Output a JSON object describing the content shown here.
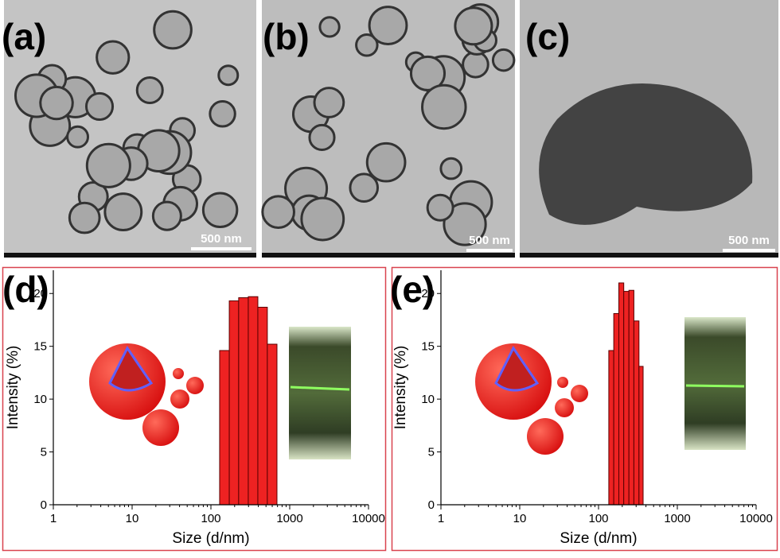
{
  "images": [
    {
      "label": "(a)",
      "scale_bar": "500 nm"
    },
    {
      "label": "(b)",
      "scale_bar": "500 nm"
    },
    {
      "label": "(c)",
      "scale_bar": "500 nm"
    }
  ],
  "chart_data": [
    {
      "type": "histogram",
      "label": "(d)",
      "xlabel": "Size (d/nm)",
      "ylabel": "Intensity (%)",
      "bins": [
        129,
        171,
        225,
        298,
        394,
        520,
        689
      ],
      "values": [
        14.6,
        19.3,
        19.6,
        19.7,
        18.7,
        15.2
      ],
      "color": "#ee2222",
      "edge_color": "#5a0000",
      "log_x": true,
      "xlim": [
        1,
        10000
      ],
      "xticks": [
        1,
        10,
        100,
        1000,
        10000
      ],
      "ylim": [
        0,
        22.2
      ],
      "yticks": [
        0,
        5,
        10,
        15,
        20
      ]
    },
    {
      "type": "histogram",
      "label": "(e)",
      "xlabel": "Size (d/nm)",
      "ylabel": "Intensity (%)",
      "bins": [
        135,
        156,
        181,
        209,
        243,
        281,
        326,
        368
      ],
      "values": [
        14.6,
        18.1,
        21.0,
        20.2,
        20.3,
        17.4,
        13.1
      ],
      "color": "#ee2222",
      "edge_color": "#5a0000",
      "log_x": true,
      "xlim": [
        1,
        10000
      ],
      "xticks": [
        1,
        10,
        100,
        1000,
        10000
      ],
      "ylim": [
        0,
        22.2
      ],
      "yticks": [
        0,
        5,
        10,
        15,
        20
      ]
    }
  ]
}
